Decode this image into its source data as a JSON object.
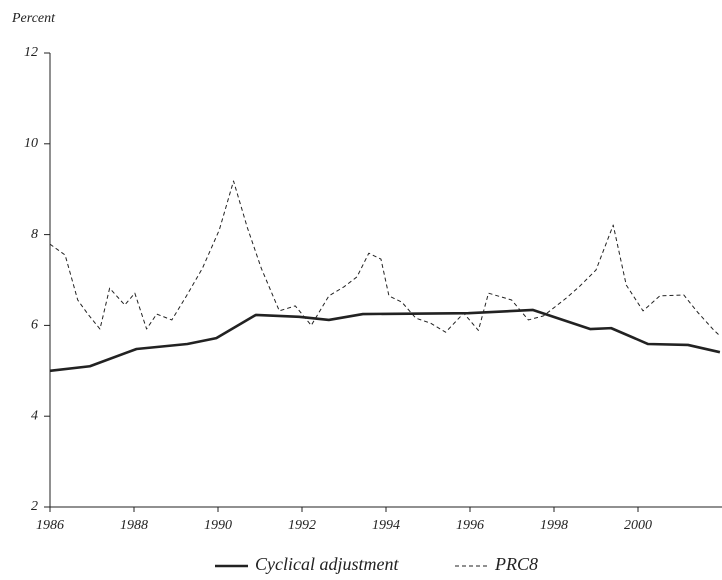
{
  "chart_data": {
    "type": "line",
    "y_label": "Percent",
    "xlim": [
      1986,
      2002
    ],
    "ylim": [
      2,
      12
    ],
    "xticks": [
      1986,
      1988,
      1990,
      1992,
      1994,
      1996,
      1998,
      2000
    ],
    "yticks": [
      2,
      4,
      6,
      8,
      10,
      12
    ],
    "series": [
      {
        "name": "Cyclical adjustment",
        "color": "#222222",
        "style": "solid",
        "x": [
          1986.0,
          1986.95,
          1988.06,
          1989.27,
          1989.96,
          1990.9,
          1991.93,
          1992.64,
          1993.45,
          1995.96,
          1997.5,
          1998.86,
          1999.36,
          2000.24,
          2001.19,
          2001.95
        ],
        "values": [
          5.0,
          5.1,
          5.48,
          5.59,
          5.72,
          6.23,
          6.19,
          6.12,
          6.25,
          6.27,
          6.34,
          5.92,
          5.94,
          5.59,
          5.57,
          5.41
        ]
      },
      {
        "name": "PRC8",
        "color": "#222222",
        "style": "dashed",
        "x": [
          1986.0,
          1986.36,
          1986.66,
          1986.9,
          1987.19,
          1987.42,
          1987.78,
          1988.02,
          1988.3,
          1988.54,
          1988.9,
          1989.25,
          1989.63,
          1990.03,
          1990.37,
          1990.7,
          1991.03,
          1991.46,
          1991.84,
          1992.22,
          1992.64,
          1993.0,
          1993.31,
          1993.59,
          1993.88,
          1994.07,
          1994.38,
          1994.71,
          1995.06,
          1995.42,
          1995.85,
          1996.2,
          1996.44,
          1996.99,
          1997.39,
          1997.75,
          1998.29,
          1998.62,
          1999.0,
          1999.41,
          1999.72,
          2000.12,
          2000.52,
          2001.09,
          2001.42,
          2001.8,
          2001.95
        ],
        "values": [
          7.79,
          7.55,
          6.56,
          6.25,
          5.92,
          6.82,
          6.45,
          6.71,
          5.92,
          6.25,
          6.12,
          6.65,
          7.26,
          8.1,
          9.18,
          8.15,
          7.26,
          6.32,
          6.43,
          6.0,
          6.65,
          6.85,
          7.07,
          7.59,
          7.46,
          6.65,
          6.51,
          6.16,
          6.05,
          5.85,
          6.27,
          5.89,
          6.71,
          6.56,
          6.12,
          6.21,
          6.6,
          6.87,
          7.22,
          8.21,
          6.89,
          6.32,
          6.65,
          6.67,
          6.29,
          5.9,
          5.77
        ]
      }
    ]
  }
}
